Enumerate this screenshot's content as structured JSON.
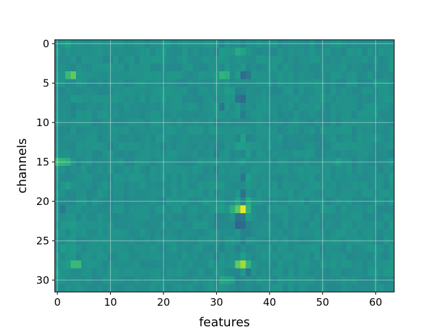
{
  "chart_data": {
    "type": "heatmap",
    "title": "",
    "xlabel": "features",
    "ylabel": "channels",
    "n_cols": 64,
    "n_rows": 32,
    "xlim": [
      -0.5,
      63.5
    ],
    "ylim": [
      31.5,
      -0.5
    ],
    "y_axis_inverted": true,
    "x_ticks": [
      0,
      10,
      20,
      30,
      40,
      50,
      60
    ],
    "y_ticks": [
      0,
      5,
      10,
      15,
      20,
      25,
      30
    ],
    "grid": true,
    "colormap": "viridis",
    "value_range": [
      -1,
      1
    ],
    "background_value": 0,
    "hotspots": [
      {
        "row": 4,
        "col": 3,
        "value": 0.5
      },
      {
        "row": 4,
        "col": 2,
        "value": 0.35
      },
      {
        "row": 4,
        "col": 31,
        "value": 0.3
      },
      {
        "row": 4,
        "col": 32,
        "value": 0.25
      },
      {
        "row": 4,
        "col": 30,
        "value": 0.1
      },
      {
        "row": 4,
        "col": 21,
        "value": 0.05
      },
      {
        "row": 4,
        "col": 35,
        "value": -0.3
      },
      {
        "row": 4,
        "col": 36,
        "value": -0.2
      },
      {
        "row": 1,
        "col": 34,
        "value": 0.2
      },
      {
        "row": 1,
        "col": 35,
        "value": 0.15
      },
      {
        "row": 0,
        "col": 2,
        "value": 0.12
      },
      {
        "row": 1,
        "col": 20,
        "value": 0.08
      },
      {
        "row": 6,
        "col": 32,
        "value": 0.1
      },
      {
        "row": 6,
        "col": 33,
        "value": 0.08
      },
      {
        "row": 7,
        "col": 34,
        "value": -0.25
      },
      {
        "row": 7,
        "col": 35,
        "value": -0.3
      },
      {
        "row": 8,
        "col": 31,
        "value": -0.2
      },
      {
        "row": 9,
        "col": 35,
        "value": -0.15
      },
      {
        "row": 13,
        "col": 34,
        "value": 0.12
      },
      {
        "row": 13,
        "col": 35,
        "value": 0.1
      },
      {
        "row": 14,
        "col": 36,
        "value": 0.08
      },
      {
        "row": 15,
        "col": 1,
        "value": 0.3
      },
      {
        "row": 15,
        "col": 0,
        "value": 0.35
      },
      {
        "row": 15,
        "col": 2,
        "value": 0.25
      },
      {
        "row": 15,
        "col": 3,
        "value": 0.05
      },
      {
        "row": 15,
        "col": 53,
        "value": 0.12
      },
      {
        "row": 15,
        "col": 63,
        "value": 0.08
      },
      {
        "row": 17,
        "col": 35,
        "value": -0.2
      },
      {
        "row": 18,
        "col": 2,
        "value": 0.12
      },
      {
        "row": 19,
        "col": 35,
        "value": -0.25
      },
      {
        "row": 20,
        "col": 34,
        "value": 0.15
      },
      {
        "row": 20,
        "col": 36,
        "value": 0.2
      },
      {
        "row": 20,
        "col": 31,
        "value": 0.05
      },
      {
        "row": 20,
        "col": 28,
        "value": 0.08
      },
      {
        "row": 21,
        "col": 35,
        "value": 0.95
      },
      {
        "row": 21,
        "col": 34,
        "value": 0.5
      },
      {
        "row": 21,
        "col": 33,
        "value": 0.25
      },
      {
        "row": 21,
        "col": 36,
        "value": 0.3
      },
      {
        "row": 21,
        "col": 31,
        "value": 0.1
      },
      {
        "row": 21,
        "col": 30,
        "value": 0.08
      },
      {
        "row": 21,
        "col": 1,
        "value": -0.2
      },
      {
        "row": 22,
        "col": 34,
        "value": -0.25
      },
      {
        "row": 22,
        "col": 35,
        "value": -0.2
      },
      {
        "row": 23,
        "col": 34,
        "value": -0.35
      },
      {
        "row": 23,
        "col": 35,
        "value": -0.3
      },
      {
        "row": 23,
        "col": 3,
        "value": 0.1
      },
      {
        "row": 27,
        "col": 35,
        "value": 0.12
      },
      {
        "row": 28,
        "col": 35,
        "value": 0.72
      },
      {
        "row": 28,
        "col": 34,
        "value": 0.5
      },
      {
        "row": 28,
        "col": 36,
        "value": 0.3
      },
      {
        "row": 28,
        "col": 3,
        "value": 0.35
      },
      {
        "row": 28,
        "col": 4,
        "value": 0.35
      },
      {
        "row": 28,
        "col": 2,
        "value": 0.1
      },
      {
        "row": 28,
        "col": 29,
        "value": 0.08
      },
      {
        "row": 26,
        "col": 1,
        "value": 0.12
      },
      {
        "row": 29,
        "col": 36,
        "value": -0.2
      },
      {
        "row": 30,
        "col": 31,
        "value": 0.18
      },
      {
        "row": 30,
        "col": 32,
        "value": 0.15
      },
      {
        "row": 30,
        "col": 33,
        "value": 0.12
      },
      {
        "row": 29,
        "col": 0,
        "value": 0.1
      },
      {
        "row": 29,
        "col": 60,
        "value": 0.08
      },
      {
        "row": 30,
        "col": 56,
        "value": 0.05
      }
    ],
    "noise_seed": 7,
    "noise_amplitude": 0.06,
    "vertical_bands": [
      {
        "col": 3,
        "amplitude": 0.05
      },
      {
        "col": 20,
        "amplitude": 0.05
      },
      {
        "col": 30,
        "amplitude": 0.06
      },
      {
        "col": 31,
        "amplitude": 0.06
      },
      {
        "col": 34,
        "amplitude": 0.07
      },
      {
        "col": 35,
        "amplitude": 0.08
      },
      {
        "col": 36,
        "amplitude": 0.07
      },
      {
        "col": 50,
        "amplitude": 0.04
      },
      {
        "col": 63,
        "amplitude": 0.04
      }
    ]
  }
}
